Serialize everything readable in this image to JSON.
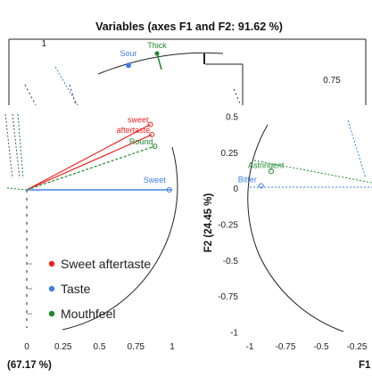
{
  "chart_data": {
    "type": "scatter",
    "title": "Variables (axes F1 and F2: 91.62 %)",
    "ylabel": "F2 (24.45 %)",
    "xlabel": "(67.17 %)",
    "xlabel_right": "F1",
    "grid": false,
    "legend_position": "left",
    "legend": [
      {
        "name": "Sweet aftertaste",
        "color": "#ee2222"
      },
      {
        "name": "Taste",
        "color": "#3a7ee8"
      },
      {
        "name": "Mouthfeel",
        "color": "#1a8a2a"
      }
    ],
    "top_panel": {
      "ytick": "1",
      "tick_right": "0.75",
      "variables": [
        {
          "label": "Sour",
          "group": "Taste",
          "x": -0.18,
          "y": 0.98
        },
        {
          "label": "Thick",
          "group": "Mouthfeel",
          "x": -0.02,
          "y": 1.0
        }
      ]
    },
    "left_panel": {
      "xticks": [
        "0",
        "0.25",
        "0.5",
        "0.75",
        "1"
      ],
      "xlim": [
        0,
        1
      ],
      "variables": [
        {
          "label": "sweet",
          "group": "Sweet aftertaste",
          "x": 0.85,
          "y": 0.45
        },
        {
          "label": "aftertaste",
          "group": "Sweet aftertaste",
          "x": 0.86,
          "y": 0.38
        },
        {
          "label": "Round",
          "group": "Mouthfeel",
          "x": 0.88,
          "y": 0.3
        },
        {
          "label": "Sweet",
          "group": "Taste",
          "x": 0.98,
          "y": 0.0
        }
      ]
    },
    "right_panel": {
      "xticks": [
        "-1",
        "-0.75",
        "-0.5",
        "-0.25"
      ],
      "yticks": [
        "0.5",
        "0.25",
        "0",
        "-0.25",
        "-0.5",
        "-0.75",
        "-1"
      ],
      "xlim": [
        -1,
        -0.25
      ],
      "ylim": [
        -1,
        0.5
      ],
      "variables": [
        {
          "label": "Astringent",
          "group": "Mouthfeel",
          "x": -0.85,
          "y": 0.12
        },
        {
          "label": "Bitter",
          "group": "Taste",
          "x": -0.92,
          "y": 0.02
        }
      ]
    }
  }
}
